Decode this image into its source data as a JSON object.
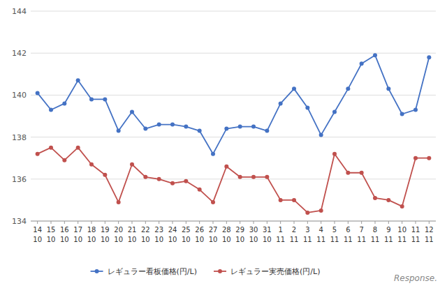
{
  "chart_data": {
    "type": "line",
    "categories": [
      "14",
      "15",
      "16",
      "17",
      "18",
      "19",
      "20",
      "21",
      "22",
      "23",
      "24",
      "25",
      "26",
      "27",
      "28",
      "29",
      "30",
      "31",
      "1",
      "2",
      "3",
      "4",
      "5",
      "6",
      "7",
      "8",
      "9",
      "10",
      "11",
      "12"
    ],
    "series": [
      {
        "name": "レギュラー看板価格(円/L)",
        "color": "#4472C4",
        "marker": "circle",
        "line_style": "solid",
        "values": [
          140.1,
          139.3,
          139.6,
          140.7,
          139.8,
          139.8,
          138.3,
          139.2,
          138.4,
          138.6,
          138.6,
          138.5,
          138.3,
          137.2,
          138.4,
          138.5,
          138.5,
          138.3,
          139.6,
          140.3,
          139.4,
          138.1,
          139.2,
          140.3,
          141.5,
          141.9,
          140.3,
          139.1,
          139.3,
          141.8
        ]
      },
      {
        "name": "レギュラー実売価格(円/L)",
        "color": "#C0504D",
        "marker": "circle",
        "line_style": "solid",
        "values": [
          137.2,
          137.5,
          136.9,
          137.5,
          136.7,
          136.2,
          134.9,
          136.7,
          136.1,
          136.0,
          135.8,
          135.9,
          135.5,
          134.9,
          136.6,
          136.1,
          136.1,
          136.1,
          135.0,
          135.0,
          134.4,
          134.5,
          137.2,
          136.3,
          136.3,
          135.1,
          135.0,
          134.7,
          137.0,
          137.0
        ]
      }
    ],
    "annotations": [
      {
        "text": "10",
        "category": "14"
      },
      {
        "text": "10",
        "category": "15"
      },
      {
        "text": "10",
        "category": "16"
      },
      {
        "text": "10",
        "category": "17"
      },
      {
        "text": "10",
        "category": "18"
      },
      {
        "text": "10",
        "category": "19"
      },
      {
        "text": "10",
        "category": "20"
      },
      {
        "text": "10",
        "category": "21"
      },
      {
        "text": "10",
        "category": "22"
      },
      {
        "text": "10",
        "category": "23"
      },
      {
        "text": "10",
        "category": "24"
      },
      {
        "text": "10",
        "category": "25"
      },
      {
        "text": "10",
        "category": "26"
      },
      {
        "text": "10",
        "category": "27"
      },
      {
        "text": "10",
        "category": "28"
      },
      {
        "text": "10",
        "category": "29"
      },
      {
        "text": "10",
        "category": "30"
      },
      {
        "text": "10",
        "category": "31"
      },
      {
        "text": "11",
        "category": "1"
      },
      {
        "text": "11",
        "category": "2"
      },
      {
        "text": "11",
        "category": "3"
      },
      {
        "text": "11",
        "category": "4"
      },
      {
        "text": "11",
        "category": "5"
      },
      {
        "text": "11",
        "category": "6"
      },
      {
        "text": "11",
        "category": "7"
      },
      {
        "text": "11",
        "category": "8"
      },
      {
        "text": "11",
        "category": "9"
      },
      {
        "text": "11",
        "category": "10"
      },
      {
        "text": "11",
        "category": "11"
      },
      {
        "text": "11",
        "category": "12"
      },
      {
        "text": "Response."
      }
    ],
    "ylim": [
      134,
      144
    ],
    "yticks": [
      134,
      136,
      138,
      140,
      142,
      144
    ],
    "grid": true,
    "legend": "bottom"
  }
}
